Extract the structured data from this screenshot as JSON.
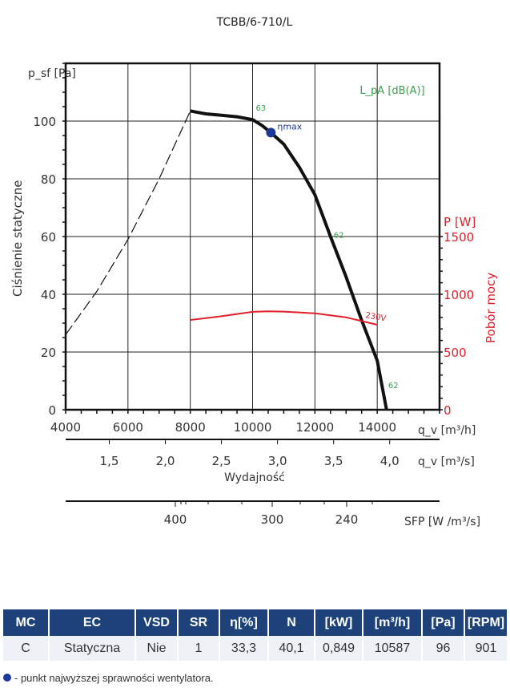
{
  "chart_data": {
    "type": "line",
    "title": "TCBB/6-710/L",
    "xlabel": "Wydajność",
    "x_unit": "q_v [m³/h]",
    "x_ticks": [
      4000,
      6000,
      8000,
      10000,
      12000,
      14000
    ],
    "xlim": [
      4000,
      16000
    ],
    "ylabel": "Ciśnienie statyczne",
    "y_unit": "p_sf [Pa]",
    "y_ticks": [
      0,
      20,
      40,
      60,
      80,
      100
    ],
    "ylim": [
      0,
      120
    ],
    "y2label": "Pobór mocy",
    "y2_unit": "P [W]",
    "y2_ticks": [
      0,
      500,
      1000,
      1500
    ],
    "sound_label": "L_pA [dB(A)]",
    "grid": true,
    "secondary_x_axes": [
      {
        "unit": "q_v [m³/s]",
        "ticks": [
          "1,5",
          "2,0",
          "2,5",
          "3,0",
          "3,5",
          "4,0"
        ],
        "values": [
          1.5,
          2.0,
          2.5,
          3.0,
          3.5,
          4.0
        ]
      },
      {
        "unit": "SFP [W /m³/s]",
        "ticks": [
          "400",
          "300",
          "240"
        ]
      }
    ],
    "series": [
      {
        "name": "fan-curve",
        "axis": "left",
        "color": "#111111",
        "x": [
          8000,
          8500,
          9000,
          9500,
          10000,
          10300,
          10587,
          11000,
          11500,
          12000,
          12500,
          13000,
          13500,
          14000,
          14300
        ],
        "y": [
          103.5,
          102.5,
          102,
          101.5,
          100.5,
          98.5,
          96,
          92,
          84,
          74.5,
          60,
          46,
          31,
          17,
          0
        ]
      },
      {
        "name": "system-curve",
        "axis": "left",
        "dashed": true,
        "color": "#111111",
        "x": [
          4000,
          5000,
          6000,
          7000,
          8000
        ],
        "y": [
          26,
          41,
          59,
          80,
          103.5
        ]
      },
      {
        "name": "230V",
        "axis": "right",
        "color": "#e0202a",
        "x": [
          8000,
          9000,
          10000,
          10500,
          11000,
          12000,
          13000,
          14000
        ],
        "y": [
          778,
          810,
          848,
          852,
          850,
          835,
          800,
          736
        ]
      }
    ],
    "sound_labels": [
      {
        "x": 10000,
        "y": 103,
        "text": "63"
      },
      {
        "x": 12500,
        "y": 59,
        "text": "62"
      },
      {
        "x": 14250,
        "y": 7,
        "text": "62"
      }
    ],
    "eta_point": {
      "x": 10587,
      "y": 96,
      "label": "ηmax",
      "color": "#1d3a9a"
    }
  },
  "table": {
    "headers": [
      "MC",
      "EC",
      "VSD",
      "SR",
      "η[%]",
      "N",
      "[kW]",
      "[m³/h]",
      "[Pa]",
      "[RPM]"
    ],
    "row": [
      "C",
      "Statyczna",
      "Nie",
      "1",
      "33,3",
      "40,1",
      "0,849",
      "10587",
      "96",
      "901"
    ]
  },
  "legend_text": "- punkt najwyższej sprawności wentylatora."
}
